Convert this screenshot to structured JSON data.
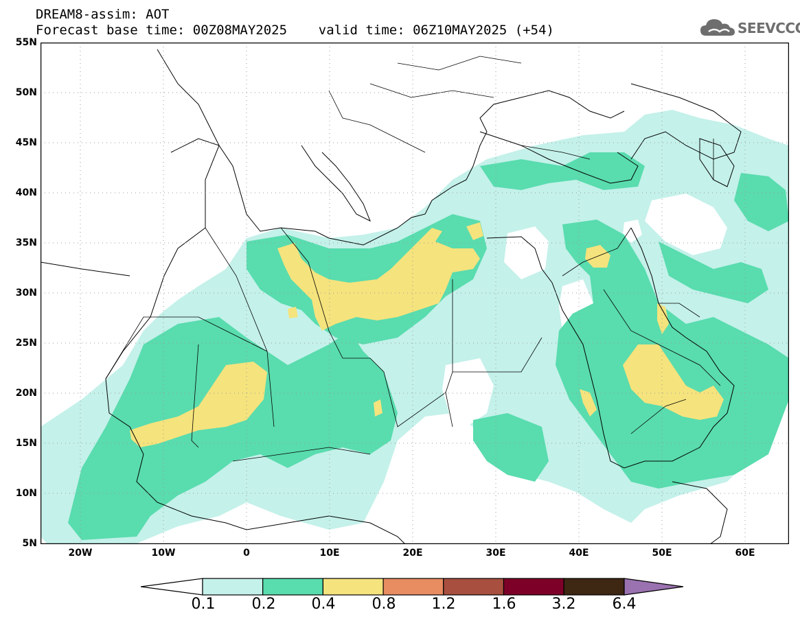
{
  "title": {
    "line1": "DREAM8-assim: AOT",
    "line2": "Forecast base time: 00Z08MAY2025    valid time: 06Z10MAY2025 (+54)"
  },
  "logo": {
    "text": "SEEVCCC",
    "icon": "cloud-icon"
  },
  "map": {
    "projection": "lat-lon",
    "extent": {
      "lon": [
        -25,
        65
      ],
      "lat": [
        5,
        55
      ]
    },
    "grid": "dotted",
    "lat_ticks": [
      "5N",
      "10N",
      "15N",
      "20N",
      "25N",
      "30N",
      "35N",
      "40N",
      "45N",
      "50N",
      "55N"
    ],
    "lon_ticks": [
      "20W",
      "10W",
      "0",
      "10E",
      "20E",
      "30E",
      "40E",
      "50E",
      "60E"
    ],
    "field": "AOT",
    "colors": {
      "0.1-0.2": "#c4f1ea",
      "0.2-0.4": "#59dcae",
      "0.4-0.8": "#f5e37d",
      "coast": "#000000"
    }
  },
  "colorbar": {
    "labels": [
      "0.1",
      "0.2",
      "0.4",
      "0.8",
      "1.2",
      "1.6",
      "3.2",
      "6.4"
    ],
    "colors": [
      "#c4f1ea",
      "#59dcae",
      "#f5e37d",
      "#e88d62",
      "#a84f3f",
      "#7d0028",
      "#3e2713",
      "#9b72b0"
    ],
    "below_color": "#ffffff"
  }
}
